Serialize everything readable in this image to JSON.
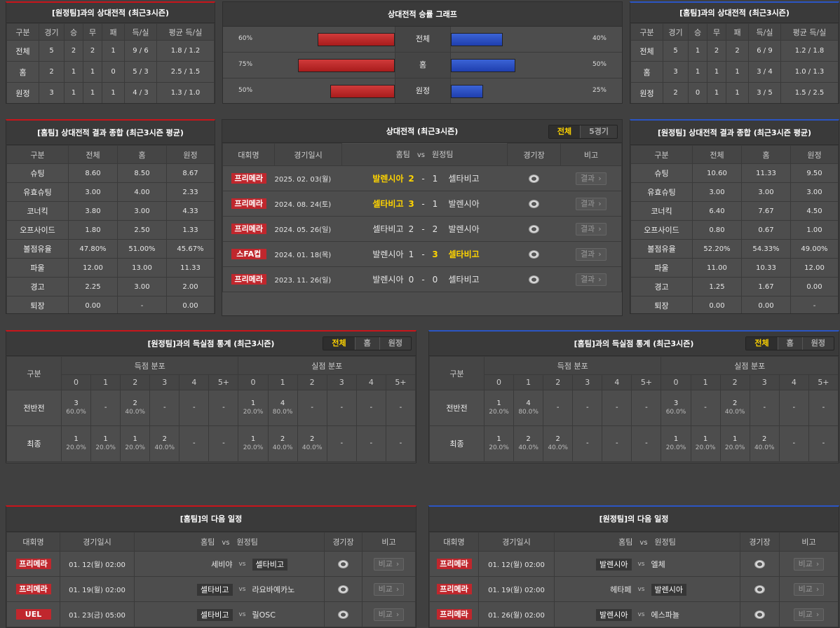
{
  "colors": {
    "home_accent": "#c8151b",
    "away_accent": "#2b55c4",
    "highlight": "#ffd400",
    "badge": "#c0272d"
  },
  "h2h_away": {
    "title": "[원정팀]과의 상대전적 (최근3시즌)",
    "headers": [
      "구분",
      "경기",
      "승",
      "무",
      "패",
      "득/실",
      "평균 득/실"
    ],
    "rows": [
      [
        "전체",
        "5",
        "2",
        "2",
        "1",
        "9 / 6",
        "1.8 / 1.2"
      ],
      [
        "홈",
        "2",
        "1",
        "1",
        "0",
        "5 / 3",
        "2.5 / 1.5"
      ],
      [
        "원정",
        "3",
        "1",
        "1",
        "1",
        "4 / 3",
        "1.3 / 1.0"
      ]
    ]
  },
  "h2h_home": {
    "title": "[홈팀]과의 상대전적 (최근3시즌)",
    "headers": [
      "구분",
      "경기",
      "승",
      "무",
      "패",
      "득/실",
      "평균 득/실"
    ],
    "rows": [
      [
        "전체",
        "5",
        "1",
        "2",
        "2",
        "6 / 9",
        "1.2 / 1.8"
      ],
      [
        "홈",
        "3",
        "1",
        "1",
        "1",
        "3 / 4",
        "1.0 / 1.3"
      ],
      [
        "원정",
        "2",
        "0",
        "1",
        "1",
        "3 / 5",
        "1.5 / 2.5"
      ]
    ]
  },
  "graph": {
    "title": "상대전적 승률 그래프",
    "rows": [
      {
        "label": "전체",
        "left_pct": 60,
        "left": "60%",
        "right_pct": 40,
        "right": "40%"
      },
      {
        "label": "홈",
        "left_pct": 75,
        "left": "75%",
        "right_pct": 50,
        "right": "50%"
      },
      {
        "label": "원정",
        "left_pct": 50,
        "left": "50%",
        "right_pct": 25,
        "right": "25%"
      }
    ]
  },
  "summary_home": {
    "title": "[홈팀] 상대전적 결과 종합 (최근3시즌 평균)",
    "headers": [
      "구분",
      "전체",
      "홈",
      "원정"
    ],
    "rows": [
      [
        "슈팅",
        "8.60",
        "8.50",
        "8.67"
      ],
      [
        "유효슈팅",
        "3.00",
        "4.00",
        "2.33"
      ],
      [
        "코너킥",
        "3.80",
        "3.00",
        "4.33"
      ],
      [
        "오프사이드",
        "1.80",
        "2.50",
        "1.33"
      ],
      [
        "볼점유율",
        "47.80%",
        "51.00%",
        "45.67%"
      ],
      [
        "파울",
        "12.00",
        "13.00",
        "11.33"
      ],
      [
        "경고",
        "2.25",
        "3.00",
        "2.00"
      ],
      [
        "퇴장",
        "0.00",
        "-",
        "0.00"
      ]
    ]
  },
  "summary_away": {
    "title": "[원정팀] 상대전적 결과 종합 (최근3시즌 평균)",
    "headers": [
      "구분",
      "전체",
      "홈",
      "원정"
    ],
    "rows": [
      [
        "슈팅",
        "10.60",
        "11.33",
        "9.50"
      ],
      [
        "유효슈팅",
        "3.00",
        "3.00",
        "3.00"
      ],
      [
        "코너킥",
        "6.40",
        "7.67",
        "4.50"
      ],
      [
        "오프사이드",
        "0.80",
        "0.67",
        "1.00"
      ],
      [
        "볼점유율",
        "52.20%",
        "54.33%",
        "49.00%"
      ],
      [
        "파울",
        "11.00",
        "10.33",
        "12.00"
      ],
      [
        "경고",
        "1.25",
        "1.67",
        "0.00"
      ],
      [
        "퇴장",
        "0.00",
        "0.00",
        "-"
      ]
    ]
  },
  "matches": {
    "title": "상대전적 (최근3시즌)",
    "tabs": [
      "전체",
      "5경기"
    ],
    "active_tab": 0,
    "headers": {
      "league": "대회명",
      "date": "경기일시",
      "home": "홈팀",
      "vs": "vs",
      "away": "원정팀",
      "stadium": "경기장",
      "note": "비고"
    },
    "button": "결과",
    "rows": [
      {
        "league": "프리메라",
        "date": "2025. 02. 03(월)",
        "home": "발렌시아",
        "hs": "2",
        "as": "1",
        "away": "셀타비고",
        "winner": "home"
      },
      {
        "league": "프리메라",
        "date": "2024. 08. 24(토)",
        "home": "셀타비고",
        "hs": "3",
        "as": "1",
        "away": "발렌시아",
        "winner": "home"
      },
      {
        "league": "프리메라",
        "date": "2024. 05. 26(일)",
        "home": "셀타비고",
        "hs": "2",
        "as": "2",
        "away": "발렌시아",
        "winner": "draw"
      },
      {
        "league": "스FA컵",
        "date": "2024. 01. 18(목)",
        "home": "발렌시아",
        "hs": "1",
        "as": "3",
        "away": "셀타비고",
        "winner": "away"
      },
      {
        "league": "프리메라",
        "date": "2023. 11. 26(일)",
        "home": "발렌시아",
        "hs": "0",
        "as": "0",
        "away": "셀타비고",
        "winner": "draw"
      }
    ]
  },
  "goals_away": {
    "title": "[원정팀]과의 득실점 통계 (최근3시즌)",
    "tabs": [
      "전체",
      "홈",
      "원정"
    ],
    "active_tab": 0,
    "label_header": "구분",
    "groups": [
      "득점 분포",
      "실점 분포"
    ],
    "cols": [
      "0",
      "1",
      "2",
      "3",
      "4",
      "5+"
    ],
    "rows": [
      {
        "label": "전반전",
        "scored": [
          [
            "3",
            "60.0%"
          ],
          null,
          [
            "2",
            "40.0%"
          ],
          null,
          null,
          null
        ],
        "conceded": [
          [
            "1",
            "20.0%"
          ],
          [
            "4",
            "80.0%"
          ],
          null,
          null,
          null,
          null
        ]
      },
      {
        "label": "최종",
        "scored": [
          [
            "1",
            "20.0%"
          ],
          [
            "1",
            "20.0%"
          ],
          [
            "1",
            "20.0%"
          ],
          [
            "2",
            "40.0%"
          ],
          null,
          null
        ],
        "conceded": [
          [
            "1",
            "20.0%"
          ],
          [
            "2",
            "40.0%"
          ],
          [
            "2",
            "40.0%"
          ],
          null,
          null,
          null
        ]
      }
    ]
  },
  "goals_home": {
    "title": "[홈팀]과의 득실점 통계 (최근3시즌)",
    "tabs": [
      "전체",
      "홈",
      "원정"
    ],
    "active_tab": 0,
    "label_header": "구분",
    "groups": [
      "득점 분포",
      "실점 분포"
    ],
    "cols": [
      "0",
      "1",
      "2",
      "3",
      "4",
      "5+"
    ],
    "rows": [
      {
        "label": "전반전",
        "scored": [
          [
            "1",
            "20.0%"
          ],
          [
            "4",
            "80.0%"
          ],
          null,
          null,
          null,
          null
        ],
        "conceded": [
          [
            "3",
            "60.0%"
          ],
          null,
          [
            "2",
            "40.0%"
          ],
          null,
          null,
          null
        ]
      },
      {
        "label": "최종",
        "scored": [
          [
            "1",
            "20.0%"
          ],
          [
            "2",
            "40.0%"
          ],
          [
            "2",
            "40.0%"
          ],
          null,
          null,
          null
        ],
        "conceded": [
          [
            "1",
            "20.0%"
          ],
          [
            "1",
            "20.0%"
          ],
          [
            "1",
            "20.0%"
          ],
          [
            "2",
            "40.0%"
          ],
          null,
          null
        ]
      }
    ]
  },
  "empty_value": "-",
  "sched_home": {
    "title": "[홈팀]의 다음 일정",
    "headers": {
      "league": "대회명",
      "date": "경기일시",
      "home": "홈팀",
      "vs": "vs",
      "away": "원정팀",
      "stadium": "경기장",
      "note": "비고"
    },
    "button": "비교",
    "rows": [
      {
        "league": "프리메라",
        "date": "01. 12(월) 02:00",
        "home": "세비야",
        "away": "셀타비고",
        "team": "away"
      },
      {
        "league": "프리메라",
        "date": "01. 19(월) 02:00",
        "home": "셀타비고",
        "away": "라요바예카노",
        "team": "home"
      },
      {
        "league": "UEL",
        "date": "01. 23(금) 05:00",
        "home": "셀타비고",
        "away": "릴OSC",
        "team": "home"
      }
    ]
  },
  "sched_away": {
    "title": "[원정팀]의 다음 일정",
    "headers": {
      "league": "대회명",
      "date": "경기일시",
      "home": "홈팀",
      "vs": "vs",
      "away": "원정팀",
      "stadium": "경기장",
      "note": "비고"
    },
    "button": "비교",
    "rows": [
      {
        "league": "프리메라",
        "date": "01. 12(월) 02:00",
        "home": "발렌시아",
        "away": "엘체",
        "team": "home"
      },
      {
        "league": "프리메라",
        "date": "01. 19(월) 02:00",
        "home": "헤타페",
        "away": "발렌시아",
        "team": "away"
      },
      {
        "league": "프리메라",
        "date": "01. 26(월) 02:00",
        "home": "발렌시아",
        "away": "에스파뇰",
        "team": "home"
      }
    ]
  }
}
